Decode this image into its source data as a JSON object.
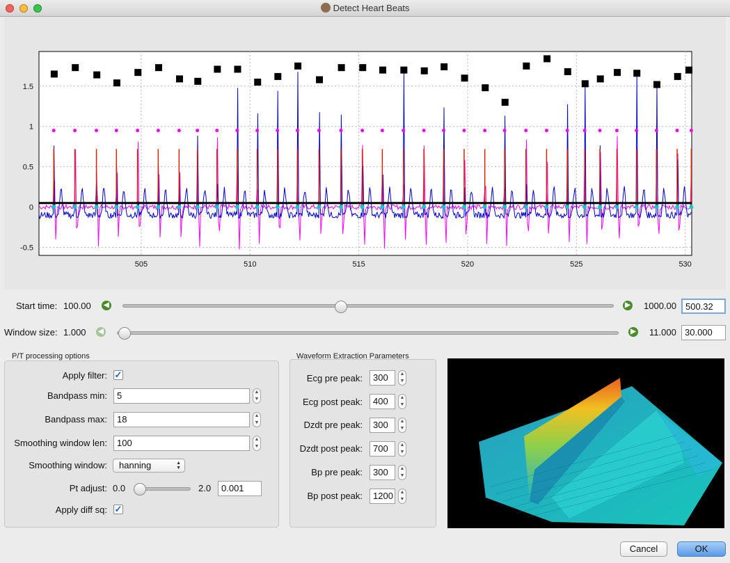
{
  "window": {
    "title": "Detect Heart Beats"
  },
  "plot": {
    "x_ticks": [
      "505",
      "510",
      "515",
      "520",
      "525",
      "530"
    ],
    "y_ticks": [
      "1.5",
      "1",
      "0.5",
      "0",
      "-0.5"
    ],
    "colors": {
      "ecg": "#0000cc",
      "filtered": "#ff00ff",
      "red": "#dd2200",
      "cyan": "#00cccc",
      "baseline": "#000000"
    }
  },
  "chart_data": {
    "type": "line",
    "xlim": [
      500.3,
      530.3
    ],
    "ylim": [
      -0.6,
      1.93
    ],
    "grid": true,
    "x_ticks": [
      505,
      510,
      515,
      520,
      525,
      530
    ],
    "y_ticks": [
      1.5,
      1,
      0.5,
      0,
      -0.5
    ],
    "threshold": 0.05,
    "beat_peaks": {
      "x": [
        501.0,
        501.97,
        502.96,
        503.88,
        504.85,
        505.8,
        506.76,
        507.6,
        508.5,
        509.43,
        510.35,
        511.28,
        512.2,
        513.19,
        514.2,
        515.18,
        516.1,
        517.07,
        518.01,
        518.92,
        519.86,
        520.81,
        521.72,
        522.7,
        523.65,
        524.6,
        525.4,
        526.1,
        526.88,
        527.78,
        528.7,
        529.65,
        530.3
      ],
      "y": [
        1.65,
        1.73,
        1.64,
        1.54,
        1.67,
        1.73,
        1.59,
        1.56,
        1.71,
        1.71,
        1.55,
        1.62,
        1.75,
        1.58,
        1.73,
        1.73,
        1.7,
        1.7,
        1.69,
        1.74,
        1.6,
        1.48,
        1.3,
        1.75,
        1.84,
        1.68,
        1.53,
        1.59,
        1.67,
        1.66,
        1.52,
        1.62,
        1.7
      ]
    },
    "series": [
      {
        "name": "",
        "role": "ecg",
        "color": "#0000cc"
      },
      {
        "name": "",
        "role": "filtered",
        "color": "#ff00ff"
      },
      {
        "name": "",
        "role": "component-red",
        "color": "#dd2200"
      },
      {
        "name": "",
        "role": "component-cyan",
        "color": "#00cccc"
      },
      {
        "name": "",
        "role": "threshold",
        "color": "#000000"
      }
    ]
  },
  "controls": {
    "start_time": {
      "label": "Start time:",
      "min": "100.00",
      "max": "1000.00",
      "value": "500.32",
      "position": 0.44
    },
    "window_size": {
      "label": "Window size:",
      "min": "1.000",
      "max": "11.000",
      "value": "30.000",
      "position": 0.0
    }
  },
  "pt_options": {
    "title": "P/T processing options",
    "apply_filter_label": "Apply filter:",
    "apply_filter": true,
    "bandpass_min_label": "Bandpass min:",
    "bandpass_min": "5",
    "bandpass_max_label": "Bandpass max:",
    "bandpass_max": "18",
    "smoothing_len_label": "Smoothing window len:",
    "smoothing_len": "100",
    "smoothing_window_label": "Smoothing window:",
    "smoothing_window": "hanning",
    "pt_adjust_label": "Pt adjust:",
    "pt_adjust_min": "0.0",
    "pt_adjust_max": "2.0",
    "pt_adjust_value": "0.001",
    "apply_diff_sq_label": "Apply diff sq:",
    "apply_diff_sq": true
  },
  "waveform": {
    "title": "Waveform Extraction Parameters",
    "params": [
      {
        "label": "Ecg pre peak:",
        "value": "300"
      },
      {
        "label": "Ecg post peak:",
        "value": "400"
      },
      {
        "label": "Dzdt pre peak:",
        "value": "300"
      },
      {
        "label": "Dzdt post peak:",
        "value": "700"
      },
      {
        "label": "Bp pre peak:",
        "value": "300"
      },
      {
        "label": "Bp post peak:",
        "value": "1200"
      }
    ]
  },
  "buttons": {
    "cancel": "Cancel",
    "ok": "OK"
  }
}
